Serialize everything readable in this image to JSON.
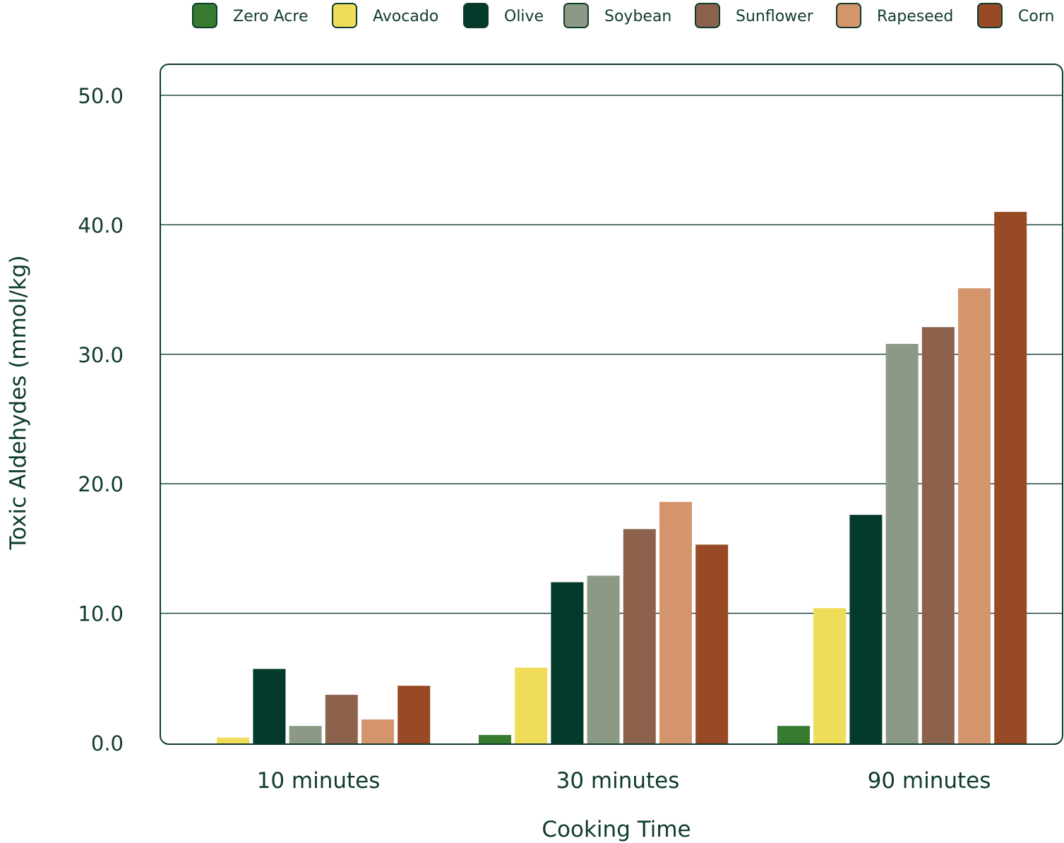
{
  "chart_data": {
    "type": "bar",
    "title": "",
    "xlabel": "Cooking Time",
    "ylabel": "Toxic Aldehydes (mmol/kg)",
    "ylim": [
      0,
      50
    ],
    "yticks": [
      "0.0",
      "10.0",
      "20.0",
      "30.0",
      "40.0",
      "50.0"
    ],
    "grid": true,
    "legend_position": "top",
    "categories": [
      "10 minutes",
      "30 minutes",
      "90 minutes"
    ],
    "series": [
      {
        "name": "Zero Acre",
        "color": "#367b2f",
        "values": [
          0.0,
          0.6,
          1.3
        ]
      },
      {
        "name": "Avocado",
        "color": "#efdc59",
        "values": [
          0.4,
          5.8,
          10.4
        ]
      },
      {
        "name": "Olive",
        "color": "#033a2c",
        "values": [
          5.7,
          12.4,
          17.6
        ]
      },
      {
        "name": "Soybean",
        "color": "#8c9a85",
        "values": [
          1.3,
          12.9,
          30.8
        ]
      },
      {
        "name": "Sunflower",
        "color": "#8d624c",
        "values": [
          3.7,
          16.5,
          32.1
        ]
      },
      {
        "name": "Rapeseed",
        "color": "#d4956d",
        "values": [
          1.8,
          18.6,
          35.1
        ]
      },
      {
        "name": "Corn",
        "color": "#974a25",
        "values": [
          4.4,
          15.3,
          41.0
        ]
      }
    ]
  }
}
